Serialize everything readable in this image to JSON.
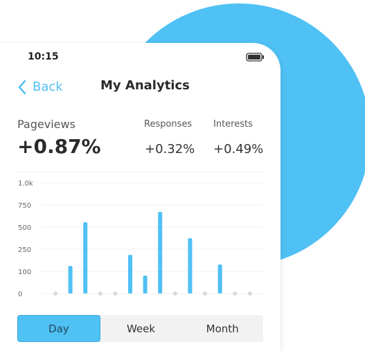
{
  "status": {
    "time": "10:15"
  },
  "nav": {
    "back": "Back",
    "title": "My Analytics"
  },
  "stats": [
    {
      "label": "Pageviews",
      "value": "+0.87%"
    },
    {
      "label": "Responses",
      "value": "+0.32%"
    },
    {
      "label": "Interests",
      "value": "+0.49%"
    }
  ],
  "chart_data": {
    "type": "bar",
    "color": "#4fc1f4",
    "categories": [
      null,
      null,
      null,
      null,
      null,
      null,
      null,
      null,
      null,
      null,
      null,
      null,
      null,
      null
    ],
    "values": [
      0,
      137,
      555,
      0,
      0,
      212,
      81,
      672,
      0,
      375,
      0,
      147,
      0,
      0
    ],
    "ylim": [
      0,
      1000
    ],
    "yticks": [
      0,
      100,
      250,
      500,
      750,
      {
        "value": 1000,
        "label": "1.0k"
      }
    ],
    "grid": true
  },
  "tabs": {
    "items": [
      "Day",
      "Week",
      "Month"
    ],
    "selected": "Day"
  }
}
